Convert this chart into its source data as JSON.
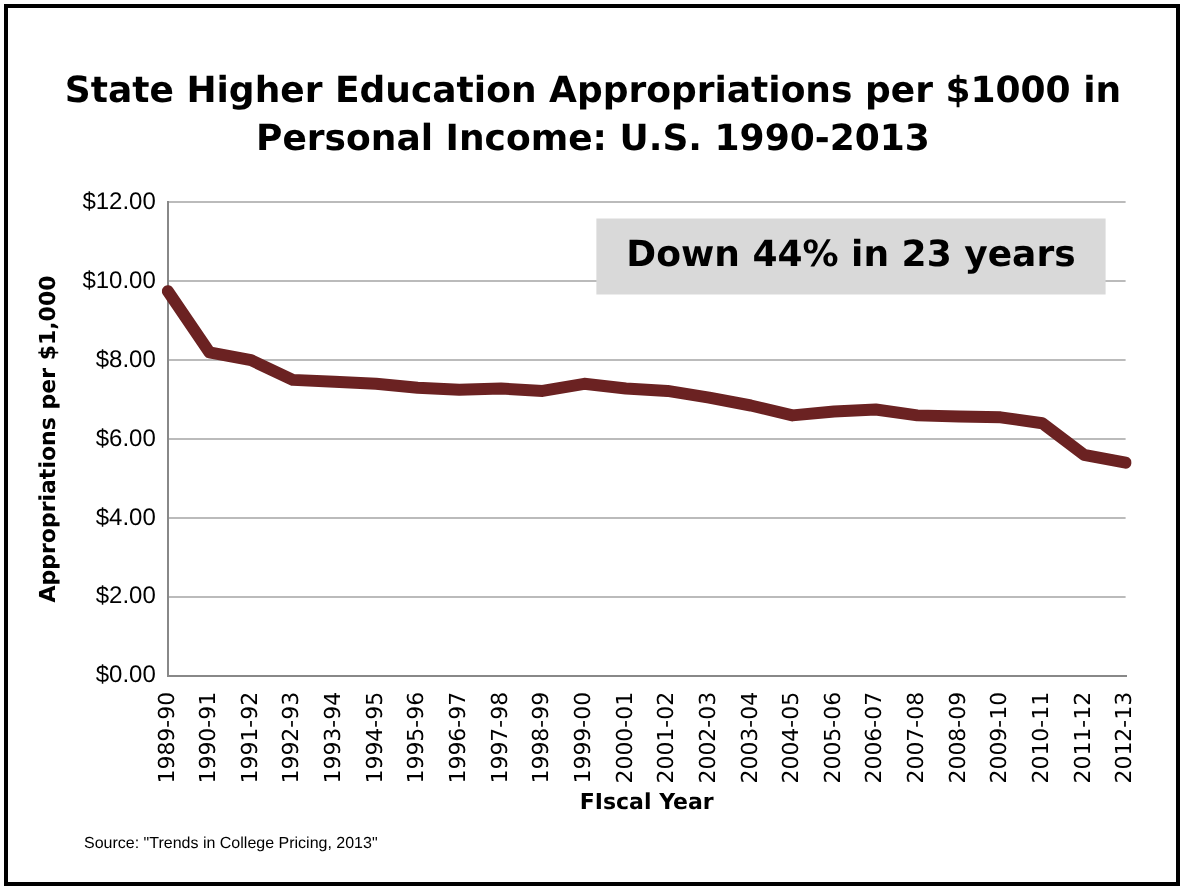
{
  "chart_data": {
    "type": "line",
    "title": "State Higher Education Appropriations per $1000 in Personal Income: U.S. 1990-2013",
    "xlabel": "FIscal Year",
    "ylabel": "Appropriations per $1,000",
    "categories": [
      "1989-90",
      "1990-91",
      "1991-92",
      "1992-93",
      "1993-94",
      "1994-95",
      "1995-96",
      "1996-97",
      "1997-98",
      "1998-99",
      "1999-00",
      "2000-01",
      "2001-02",
      "2002-03",
      "2003-04",
      "2004-05",
      "2005-06",
      "2006-07",
      "2007-08",
      "2008-09",
      "2009-10",
      "2010-11",
      "2011-12",
      "2012-13"
    ],
    "series": [
      {
        "color": "#6b2222",
        "values": [
          9.75,
          8.2,
          8.0,
          7.5,
          7.45,
          7.4,
          7.3,
          7.25,
          7.28,
          7.22,
          7.4,
          7.28,
          7.22,
          7.05,
          6.85,
          6.6,
          6.7,
          6.75,
          6.6,
          6.57,
          6.55,
          6.4,
          5.6,
          5.4
        ]
      }
    ],
    "ylim": [
      0,
      12
    ],
    "yticks": [
      {
        "value": 0,
        "label": "$0.00"
      },
      {
        "value": 2,
        "label": "$2.00"
      },
      {
        "value": 4,
        "label": "$4.00"
      },
      {
        "value": 6,
        "label": "$6.00"
      },
      {
        "value": 8,
        "label": "$8.00"
      },
      {
        "value": 10,
        "label": "$10.00"
      },
      {
        "value": 12,
        "label": "$12.00"
      }
    ],
    "grid": "y",
    "legend": false,
    "marker": "none",
    "line_style": "solid",
    "annotations": [
      "Down 44% in 23 years",
      "Source:  \"Trends in College Pricing, 2013\""
    ]
  }
}
